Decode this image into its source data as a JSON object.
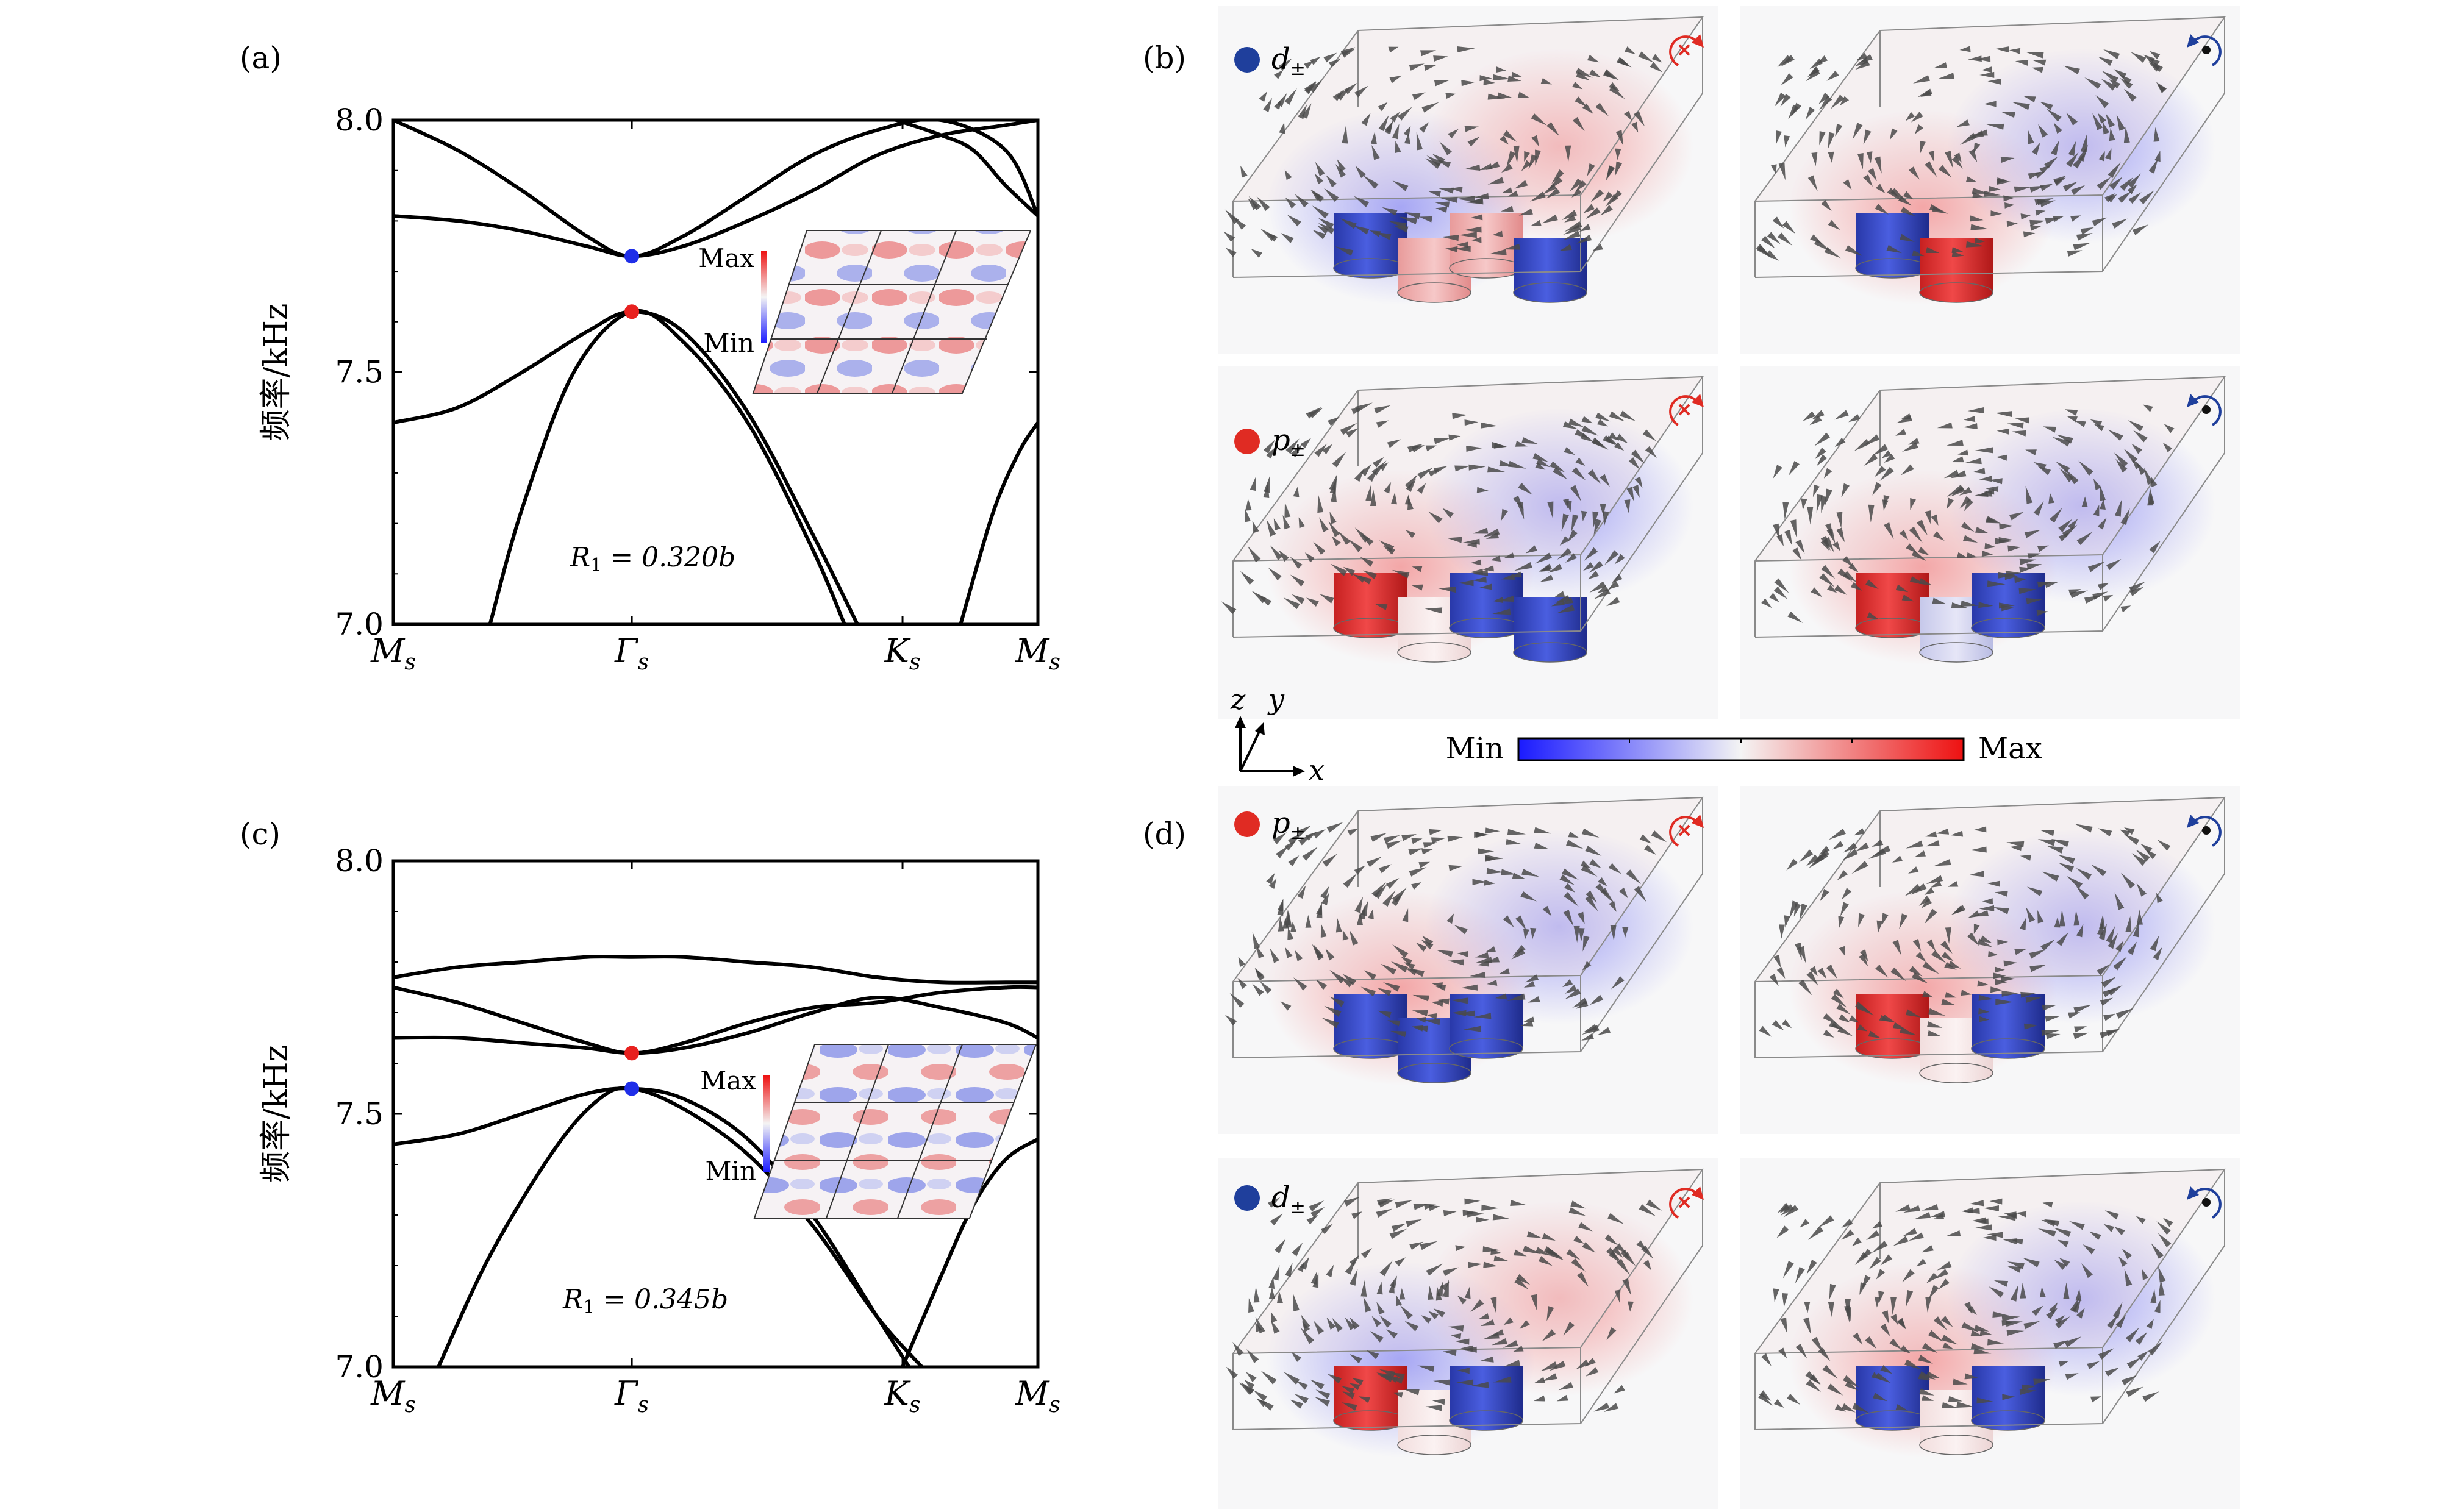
{
  "chart_data": [
    {
      "id": "a",
      "type": "line",
      "panel_label": "(a)",
      "ylabel": "频率/kHz",
      "ylim": [
        7.0,
        8.0
      ],
      "yticks": [
        "7.0",
        "7.5",
        "8.0"
      ],
      "xlabel": "",
      "xticks": [
        {
          "label": "M",
          "sub": "s",
          "pos": 0
        },
        {
          "label": "Γ",
          "sub": "s",
          "pos": 0.37
        },
        {
          "label": "K",
          "sub": "s",
          "pos": 0.79
        },
        {
          "label": "M",
          "sub": "s",
          "pos": 1
        }
      ],
      "annotation": {
        "main": "R",
        "sub": "1",
        "rest": " = 0.320b"
      },
      "inset": {
        "max_label": "Max",
        "min_label": "Min"
      },
      "highlight_points": [
        {
          "name": "d-mode",
          "x": 0.37,
          "y": 7.73,
          "color": "#1f2ee8"
        },
        {
          "name": "p-mode",
          "x": 0.37,
          "y": 7.62,
          "color": "#e8211f"
        }
      ],
      "series": [
        {
          "name": "band-1",
          "x": [
            0,
            0.1,
            0.2,
            0.3,
            0.37,
            0.45,
            0.55,
            0.65,
            0.75,
            0.85,
            0.95,
            1
          ],
          "y": [
            7.81,
            7.8,
            7.78,
            7.75,
            7.73,
            7.75,
            7.8,
            7.86,
            7.93,
            7.97,
            7.99,
            8.0
          ]
        },
        {
          "name": "band-2",
          "x": [
            0,
            0.1,
            0.2,
            0.3,
            0.37,
            0.45,
            0.55,
            0.65,
            0.75,
            0.85,
            0.95,
            1
          ],
          "y": [
            8.0,
            7.94,
            7.86,
            7.77,
            7.73,
            7.77,
            7.85,
            7.93,
            7.98,
            8.0,
            7.94,
            7.81
          ]
        },
        {
          "name": "band-3",
          "x": [
            0,
            0.1,
            0.2,
            0.3,
            0.37,
            0.45,
            0.55,
            0.65,
            0.72
          ],
          "y": [
            7.4,
            7.43,
            7.5,
            7.58,
            7.62,
            7.58,
            7.42,
            7.18,
            7.0
          ]
        },
        {
          "name": "band-4",
          "x": [
            0.15,
            0.2,
            0.28,
            0.37,
            0.45,
            0.55,
            0.65,
            0.7
          ],
          "y": [
            7.0,
            7.23,
            7.5,
            7.62,
            7.56,
            7.4,
            7.15,
            7.0
          ]
        },
        {
          "name": "band-5",
          "x": [
            0.88,
            0.93,
            0.97,
            1
          ],
          "y": [
            7.0,
            7.22,
            7.34,
            7.4
          ]
        },
        {
          "name": "band-6",
          "x": [
            0.78,
            0.85,
            0.9,
            0.95,
            1
          ],
          "y": [
            8.0,
            7.97,
            7.94,
            7.87,
            7.81
          ]
        }
      ]
    },
    {
      "id": "c",
      "type": "line",
      "panel_label": "(c)",
      "ylabel": "频率/kHz",
      "ylim": [
        7.0,
        8.0
      ],
      "yticks": [
        "7.0",
        "7.5",
        "8.0"
      ],
      "xlabel": "",
      "xticks": [
        {
          "label": "M",
          "sub": "s",
          "pos": 0
        },
        {
          "label": "Γ",
          "sub": "s",
          "pos": 0.37
        },
        {
          "label": "K",
          "sub": "s",
          "pos": 0.79
        },
        {
          "label": "M",
          "sub": "s",
          "pos": 1
        }
      ],
      "annotation": {
        "main": "R",
        "sub": "1",
        "rest": " = 0.345b"
      },
      "inset": {
        "max_label": "Max",
        "min_label": "Min"
      },
      "highlight_points": [
        {
          "name": "p-mode",
          "x": 0.37,
          "y": 7.62,
          "color": "#e8211f"
        },
        {
          "name": "d-mode",
          "x": 0.37,
          "y": 7.55,
          "color": "#1f2ee8"
        }
      ],
      "series": [
        {
          "name": "band-1",
          "x": [
            0,
            0.1,
            0.2,
            0.3,
            0.37,
            0.45,
            0.55,
            0.65,
            0.75,
            0.85,
            0.95,
            1
          ],
          "y": [
            7.77,
            7.79,
            7.8,
            7.81,
            7.81,
            7.81,
            7.8,
            7.79,
            7.77,
            7.76,
            7.76,
            7.76
          ]
        },
        {
          "name": "band-2",
          "x": [
            0,
            0.1,
            0.2,
            0.3,
            0.37,
            0.45,
            0.55,
            0.65,
            0.75,
            0.85,
            0.95,
            1
          ],
          "y": [
            7.75,
            7.72,
            7.68,
            7.64,
            7.62,
            7.64,
            7.68,
            7.71,
            7.72,
            7.74,
            7.75,
            7.75
          ]
        },
        {
          "name": "band-3",
          "x": [
            0,
            0.1,
            0.2,
            0.3,
            0.37,
            0.45,
            0.55,
            0.65,
            0.75,
            0.85,
            0.95,
            1
          ],
          "y": [
            7.65,
            7.65,
            7.64,
            7.63,
            7.62,
            7.63,
            7.66,
            7.7,
            7.73,
            7.71,
            7.68,
            7.65
          ]
        },
        {
          "name": "band-4",
          "x": [
            0,
            0.1,
            0.2,
            0.3,
            0.37,
            0.45,
            0.55,
            0.65,
            0.75,
            0.8
          ],
          "y": [
            7.44,
            7.46,
            7.5,
            7.54,
            7.55,
            7.53,
            7.45,
            7.3,
            7.1,
            7.0
          ]
        },
        {
          "name": "band-5",
          "x": [
            0.07,
            0.15,
            0.25,
            0.32,
            0.37,
            0.45,
            0.55,
            0.65,
            0.75,
            0.82
          ],
          "y": [
            7.0,
            7.22,
            7.43,
            7.53,
            7.55,
            7.51,
            7.42,
            7.28,
            7.1,
            7.0
          ]
        },
        {
          "name": "band-6",
          "x": [
            0.79,
            0.85,
            0.9,
            0.95,
            1
          ],
          "y": [
            7.0,
            7.18,
            7.32,
            7.41,
            7.45
          ]
        }
      ]
    }
  ],
  "field_panels": {
    "b": {
      "panel_label": "(b)",
      "rows": [
        {
          "mode_symbol": "d",
          "mode_sub": "±",
          "mode_color": "#1f3f9c"
        },
        {
          "mode_symbol": "p",
          "mode_sub": "±",
          "mode_color": "#e02b23"
        }
      ]
    },
    "d": {
      "panel_label": "(d)",
      "rows": [
        {
          "mode_symbol": "p",
          "mode_sub": "±",
          "mode_color": "#e02b23"
        },
        {
          "mode_symbol": "d",
          "mode_sub": "±",
          "mode_color": "#1f3f9c"
        }
      ]
    },
    "axes": {
      "z": "z",
      "y": "y",
      "x": "x"
    },
    "colorbar": {
      "min_label": "Min",
      "max_label": "Max",
      "min_color": "#1a1aff",
      "mid_color": "#f4f4f4",
      "max_color": "#ee1111"
    },
    "rotation_icons": {
      "clockwise_color": "#e02b23",
      "counter_color": "#1f3f9c"
    }
  }
}
